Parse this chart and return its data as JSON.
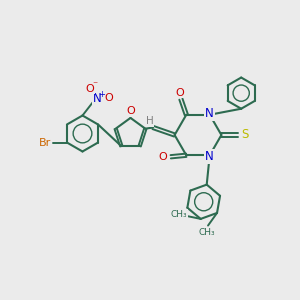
{
  "background_color": "#ebebeb",
  "bond_color": "#2d6b50",
  "label_colors": {
    "O": "#cc0000",
    "N": "#0000cc",
    "S": "#bbbb00",
    "Br": "#cc6600",
    "H": "#808080",
    "C": "#2d6b50"
  },
  "figsize": [
    3.0,
    3.0
  ],
  "dpi": 100
}
